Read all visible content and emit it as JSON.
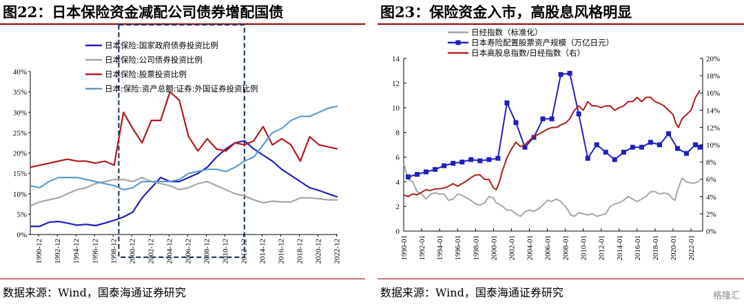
{
  "left_panel": {
    "title": "图22：日本保险资金减配公司债券增配国债",
    "source": "数据来源：Wind，国泰海通证券研究"
  },
  "right_panel": {
    "title": "图23：保险资金入市，高股息风格明显",
    "source": "数据来源：Wind，国泰海通证券研究"
  },
  "watermark": "格隆汇",
  "colors": {
    "blue": "#1f1fbf",
    "gray": "#a6a6a6",
    "red": "#b01a1a",
    "lightblue": "#5b9bd5",
    "box": "#1f3a5f",
    "rule": "#9a0000"
  },
  "chart_data": [
    {
      "type": "line",
      "title": "日本保险资金减配公司债券增配国债",
      "xlabel": "",
      "ylabel": "",
      "ylim": [
        0,
        40
      ],
      "y_tick_labels": [
        "0%",
        "5%",
        "10%",
        "15%",
        "20%",
        "25%",
        "30%",
        "35%",
        "40%"
      ],
      "x_tick_labels": [
        "1990-12",
        "1992-12",
        "1994-12",
        "1996-12",
        "1998-12",
        "2000-12",
        "2002-12",
        "2004-12",
        "2006-12",
        "2008-12",
        "2010-12",
        "2012-12",
        "2014-12",
        "2016-12",
        "2018-12",
        "2020-12",
        "2022-12"
      ],
      "legend_position": "top-left",
      "highlight_box_years": [
        1999.5,
        2013.0
      ],
      "series": [
        {
          "name": "日本保险:国家政府债券投资比例",
          "color": "#1f1fbf",
          "x": [
            1990,
            1991,
            1992,
            1993,
            1994,
            1995,
            1996,
            1997,
            1998,
            1999,
            2000,
            2001,
            2002,
            2003,
            2004,
            2005,
            2006,
            2007,
            2008,
            2009,
            2010,
            2011,
            2012,
            2013,
            2014,
            2015,
            2016,
            2017,
            2018,
            2019,
            2020,
            2021,
            2022,
            2023
          ],
          "y": [
            2,
            2,
            3,
            3.2,
            2.8,
            2.3,
            2.5,
            2.2,
            2.8,
            3.5,
            4.3,
            5.5,
            9,
            11.5,
            14,
            13,
            13,
            14,
            15,
            16.5,
            19,
            21,
            22.5,
            23,
            21,
            19.5,
            18,
            16,
            14.5,
            13,
            11.5,
            10.8,
            10,
            9.2
          ]
        },
        {
          "name": "日本保险:公司债券投资比例",
          "color": "#a6a6a6",
          "x": [
            1990,
            1991,
            1992,
            1993,
            1994,
            1995,
            1996,
            1997,
            1998,
            1999,
            2000,
            2001,
            2002,
            2003,
            2004,
            2005,
            2006,
            2007,
            2008,
            2009,
            2010,
            2011,
            2012,
            2013,
            2014,
            2015,
            2016,
            2017,
            2018,
            2019,
            2020,
            2021,
            2022,
            2023
          ],
          "y": [
            7,
            8,
            8.5,
            9,
            10,
            11,
            11.5,
            12.5,
            13,
            13.5,
            13.5,
            13,
            14,
            13,
            12.5,
            12,
            11,
            11.5,
            12.5,
            13,
            12,
            11,
            10,
            9.5,
            8.5,
            7.8,
            8.2,
            8,
            8,
            9,
            9,
            8.8,
            8.5,
            8.5
          ]
        },
        {
          "name": "日本保险:股票投资比例",
          "color": "#b01a1a",
          "x": [
            1990,
            1991,
            1992,
            1993,
            1994,
            1995,
            1996,
            1997,
            1998,
            1999,
            2000,
            2001,
            2002,
            2003,
            2004,
            2005,
            2006,
            2007,
            2008,
            2009,
            2010,
            2011,
            2012,
            2013,
            2014,
            2015,
            2016,
            2017,
            2018,
            2019,
            2020,
            2021,
            2022,
            2023
          ],
          "y": [
            16.5,
            17,
            17.5,
            18,
            18.5,
            18,
            18,
            17.5,
            18,
            17,
            30,
            26,
            22.5,
            28,
            28,
            35,
            33,
            24,
            20.5,
            23.5,
            21,
            20.5,
            22.5,
            22,
            23,
            26.5,
            22,
            23.5,
            22,
            18,
            24,
            22,
            21.5,
            21
          ]
        },
        {
          "name": "日本:保险:资产总额:证券:外国证券投资比例",
          "color": "#5b9bd5",
          "x": [
            1990,
            1991,
            1992,
            1993,
            1994,
            1995,
            1996,
            1997,
            1998,
            1999,
            2000,
            2001,
            2002,
            2003,
            2004,
            2005,
            2006,
            2007,
            2008,
            2009,
            2010,
            2011,
            2012,
            2013,
            2014,
            2015,
            2016,
            2017,
            2018,
            2019,
            2020,
            2021,
            2022,
            2023
          ],
          "y": [
            12,
            11.5,
            13,
            14,
            14,
            14,
            13.5,
            13,
            12.5,
            12,
            11,
            11.5,
            13,
            13,
            13,
            13,
            13.5,
            15,
            15.5,
            16,
            16,
            15.5,
            16.5,
            18,
            19,
            22,
            25,
            26,
            28,
            29,
            29,
            30,
            31,
            31.5
          ]
        }
      ]
    },
    {
      "type": "line",
      "title": "保险资金入市，高股息风格明显",
      "xlabel": "",
      "ylabel": "",
      "ylim": [
        0,
        14
      ],
      "y2lim": [
        0,
        20
      ],
      "y_tick_labels": [
        "0",
        "2",
        "4",
        "6",
        "8",
        "10",
        "12",
        "14"
      ],
      "y2_tick_labels": [
        "0%",
        "2%",
        "4%",
        "6%",
        "8%",
        "10%",
        "12%",
        "14%",
        "16%",
        "18%",
        "20%"
      ],
      "x_tick_labels": [
        "1990-01",
        "1992-01",
        "1994-01",
        "1996-01",
        "1998-01",
        "2000-01",
        "2002-01",
        "2004-01",
        "2006-01",
        "2008-01",
        "2010-01",
        "2012-01",
        "2014-01",
        "2016-01",
        "2018-01",
        "2020-01",
        "2022-01"
      ],
      "legend_position": "top-left",
      "series": [
        {
          "name": "日经指数（标准化）",
          "axis": "left",
          "color": "#a6a6a6",
          "x": [
            1990,
            1990.5,
            1991,
            1991.5,
            1992,
            1992.5,
            1993,
            1993.5,
            1994,
            1994.5,
            1995,
            1995.5,
            1996,
            1996.5,
            1997,
            1997.5,
            1998,
            1998.5,
            1999,
            1999.5,
            2000,
            2000.3,
            2000.6,
            2001,
            2001.5,
            2002,
            2002.5,
            2003,
            2003.3,
            2003.6,
            2004,
            2004.5,
            2005,
            2005.5,
            2006,
            2006.5,
            2007,
            2007.5,
            2008,
            2008.3,
            2008.6,
            2009,
            2009.5,
            2010,
            2010.5,
            2011,
            2011.5,
            2012,
            2012.5,
            2013,
            2013.5,
            2014,
            2014.5,
            2015,
            2015.5,
            2016,
            2016.5,
            2017,
            2017.5,
            2018,
            2018.5,
            2019,
            2019.5,
            2020,
            2020.2,
            2020.5,
            2021,
            2021.5,
            2022,
            2022.5,
            2023
          ],
          "y": [
            5.5,
            4.2,
            4.0,
            3.2,
            3.0,
            2.6,
            3.0,
            3.1,
            3.0,
            3.0,
            2.5,
            2.6,
            3.0,
            2.9,
            2.7,
            2.5,
            2.2,
            2.1,
            2.3,
            2.8,
            2.7,
            2.3,
            2.2,
            2.0,
            1.7,
            1.7,
            1.4,
            1.2,
            1.4,
            1.6,
            1.7,
            1.6,
            1.8,
            2.1,
            2.5,
            2.4,
            2.6,
            2.4,
            2.0,
            1.7,
            1.3,
            1.2,
            1.5,
            1.4,
            1.3,
            1.4,
            1.2,
            1.3,
            1.4,
            2.0,
            2.2,
            2.3,
            2.5,
            2.8,
            2.6,
            2.4,
            2.6,
            2.8,
            3.2,
            3.2,
            3.0,
            3.1,
            3.0,
            2.6,
            2.5,
            3.3,
            4.3,
            4.0,
            3.9,
            3.9,
            4.1
          ]
        },
        {
          "name": "日本寿险配置股票资产规模（万亿日元）",
          "axis": "left",
          "color": "#1f1fbf",
          "markers": true,
          "x": [
            1990.5,
            1991.5,
            1992.5,
            1993.5,
            1994.5,
            1995.5,
            1996.5,
            1997.5,
            1998.5,
            1999.5,
            2000.5,
            2001.5,
            2002.5,
            2003.5,
            2004.5,
            2005.5,
            2006.5,
            2007.5,
            2008.5,
            2009.5,
            2010.5,
            2011.5,
            2012.5,
            2013.5,
            2014.5,
            2015.5,
            2016.5,
            2017.5,
            2018.5,
            2019.5,
            2020.5,
            2021.5,
            2022.5,
            2023
          ],
          "y": [
            4.4,
            4.6,
            4.8,
            5.0,
            5.3,
            5.5,
            5.6,
            5.8,
            5.7,
            5.8,
            5.9,
            10.4,
            8.8,
            6.8,
            7.6,
            9.1,
            9.1,
            12.7,
            12.8,
            9.5,
            5.9,
            7.0,
            6.4,
            5.8,
            6.4,
            6.8,
            6.8,
            7.2,
            7.0,
            7.9,
            6.7,
            6.3,
            7.0,
            6.8
          ]
        },
        {
          "name": "日本高股息指数/日经指数（右）",
          "axis": "right",
          "color": "#b01a1a",
          "x": [
            1990,
            1990.5,
            1991,
            1991.5,
            1992,
            1992.5,
            1993,
            1993.5,
            1994,
            1994.5,
            1995,
            1995.5,
            1996,
            1996.5,
            1997,
            1997.5,
            1998,
            1998.5,
            1999,
            1999.5,
            2000,
            2000.3,
            2000.6,
            2001,
            2001.5,
            2002,
            2002.5,
            2003,
            2003.5,
            2004,
            2004.5,
            2005,
            2005.5,
            2006,
            2006.5,
            2007,
            2007.5,
            2008,
            2008.5,
            2009,
            2009.5,
            2010,
            2010.5,
            2011,
            2011.5,
            2012,
            2012.5,
            2013,
            2013.5,
            2014,
            2014.5,
            2015,
            2015.5,
            2016,
            2016.5,
            2017,
            2017.5,
            2018,
            2018.5,
            2019,
            2019.5,
            2020,
            2020.3,
            2020.6,
            2021,
            2021.5,
            2022,
            2022.5,
            2023
          ],
          "y": [
            4.2,
            4.0,
            4.3,
            4.2,
            4.5,
            4.8,
            4.7,
            4.9,
            4.9,
            5.0,
            5.2,
            5.5,
            5.2,
            5.5,
            5.8,
            6.2,
            6.5,
            6.5,
            6.0,
            6.0,
            5.0,
            4.8,
            5.5,
            7.0,
            8.5,
            9.5,
            10.3,
            9.8,
            10.0,
            10.5,
            11.0,
            11.2,
            11.5,
            11.8,
            12.0,
            12.0,
            12.3,
            12.5,
            13.0,
            14.0,
            14.5,
            14.0,
            15.0,
            14.5,
            14.5,
            14.3,
            14.5,
            14.5,
            14.0,
            14.3,
            14.5,
            15.0,
            15.0,
            15.5,
            15.0,
            15.5,
            15.5,
            15.0,
            14.8,
            14.5,
            14.0,
            13.5,
            12.5,
            12.0,
            13.0,
            13.5,
            14.0,
            15.5,
            16.3
          ]
        }
      ]
    }
  ]
}
